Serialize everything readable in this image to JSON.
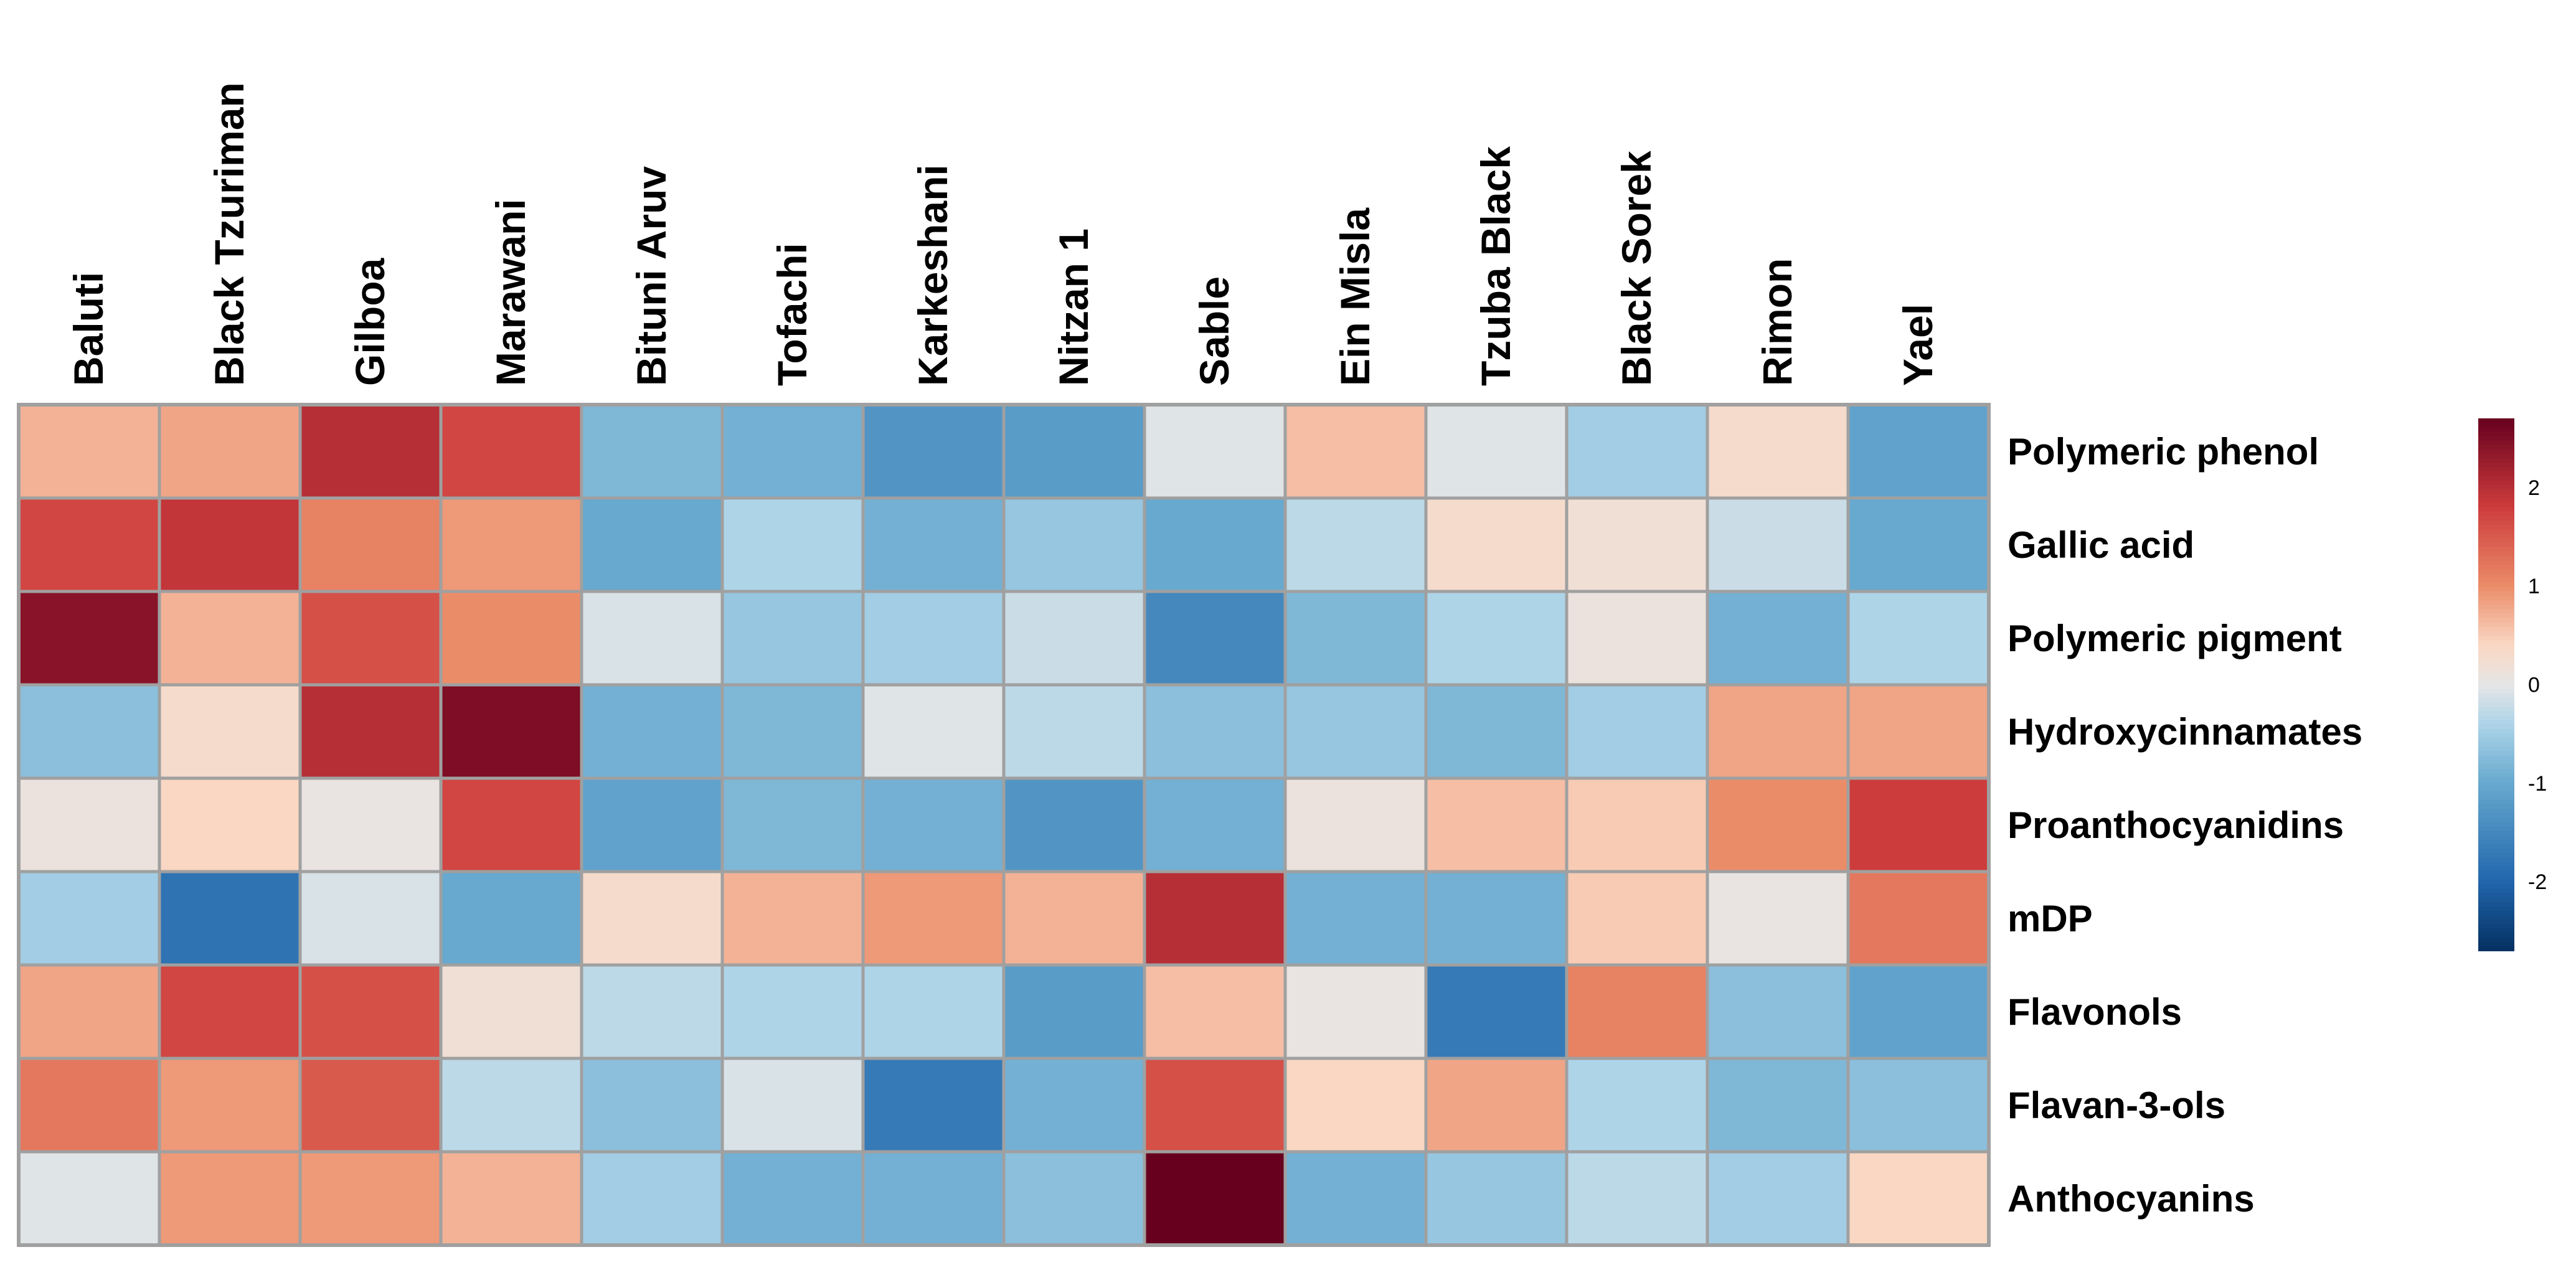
{
  "chart_data": {
    "type": "heatmap",
    "title": "",
    "columns": [
      "Baluti",
      "Black Tzuriman",
      "Gilboa",
      "Marawani",
      "Bituni Aruv",
      "Tofachi",
      "Karkeshani",
      "Nitzan 1",
      "Sable",
      "Ein Misla",
      "Tzuba Black",
      "Black Sorek",
      "Rimon",
      "Yael"
    ],
    "rows": [
      "Polymeric phenol",
      "Gallic acid",
      "Polymeric pigment",
      "Hydroxycinnamates",
      "Proanthocyanidins",
      "mDP",
      "Flavonols",
      "Flavan-3-ols",
      "Anthocyanins"
    ],
    "values": [
      [
        0.7,
        0.8,
        2.0,
        1.7,
        -0.8,
        -0.9,
        -1.3,
        -1.2,
        -0.05,
        0.6,
        -0.05,
        -0.5,
        0.3,
        -1.1
      ],
      [
        1.7,
        1.9,
        1.1,
        0.9,
        -1.0,
        -0.4,
        -0.9,
        -0.6,
        -1.0,
        -0.3,
        0.3,
        0.2,
        -0.2,
        -1.0
      ],
      [
        2.4,
        0.7,
        1.6,
        1.0,
        -0.1,
        -0.6,
        -0.5,
        -0.2,
        -1.5,
        -0.8,
        -0.4,
        0.1,
        -0.9,
        -0.4
      ],
      [
        -0.7,
        0.3,
        2.0,
        2.5,
        -0.9,
        -0.8,
        -0.05,
        -0.3,
        -0.7,
        -0.6,
        -0.8,
        -0.5,
        0.8,
        0.8
      ],
      [
        0.1,
        0.4,
        0.05,
        1.7,
        -1.1,
        -0.8,
        -0.9,
        -1.3,
        -0.9,
        0.1,
        0.6,
        0.5,
        1.0,
        1.8
      ],
      [
        -0.5,
        -1.8,
        -0.1,
        -1.0,
        0.3,
        0.7,
        0.9,
        0.7,
        2.0,
        -0.9,
        -0.9,
        0.5,
        0.05,
        1.2
      ],
      [
        0.8,
        1.7,
        1.6,
        0.2,
        -0.3,
        -0.4,
        -0.4,
        -1.2,
        0.6,
        0.05,
        -1.7,
        1.1,
        -0.7,
        -1.1
      ],
      [
        1.2,
        0.9,
        1.5,
        -0.3,
        -0.7,
        -0.1,
        -1.7,
        -0.9,
        1.6,
        0.4,
        0.8,
        -0.4,
        -0.8,
        -0.7
      ],
      [
        -0.05,
        0.9,
        0.9,
        0.7,
        -0.5,
        -0.9,
        -0.9,
        -0.7,
        2.8,
        -0.9,
        -0.6,
        -0.3,
        -0.5,
        0.4
      ]
    ],
    "colorbar": {
      "ticks": [
        2,
        1,
        0,
        -1,
        -2
      ],
      "tick_labels": [
        "2",
        "1",
        "0",
        "-1",
        "-2"
      ],
      "range": [
        -2.7,
        2.7
      ],
      "low_color": "#053061",
      "mid_color": "#f7f7f7",
      "high_color": "#67001f"
    },
    "grid_color": "#a0a0a0"
  }
}
